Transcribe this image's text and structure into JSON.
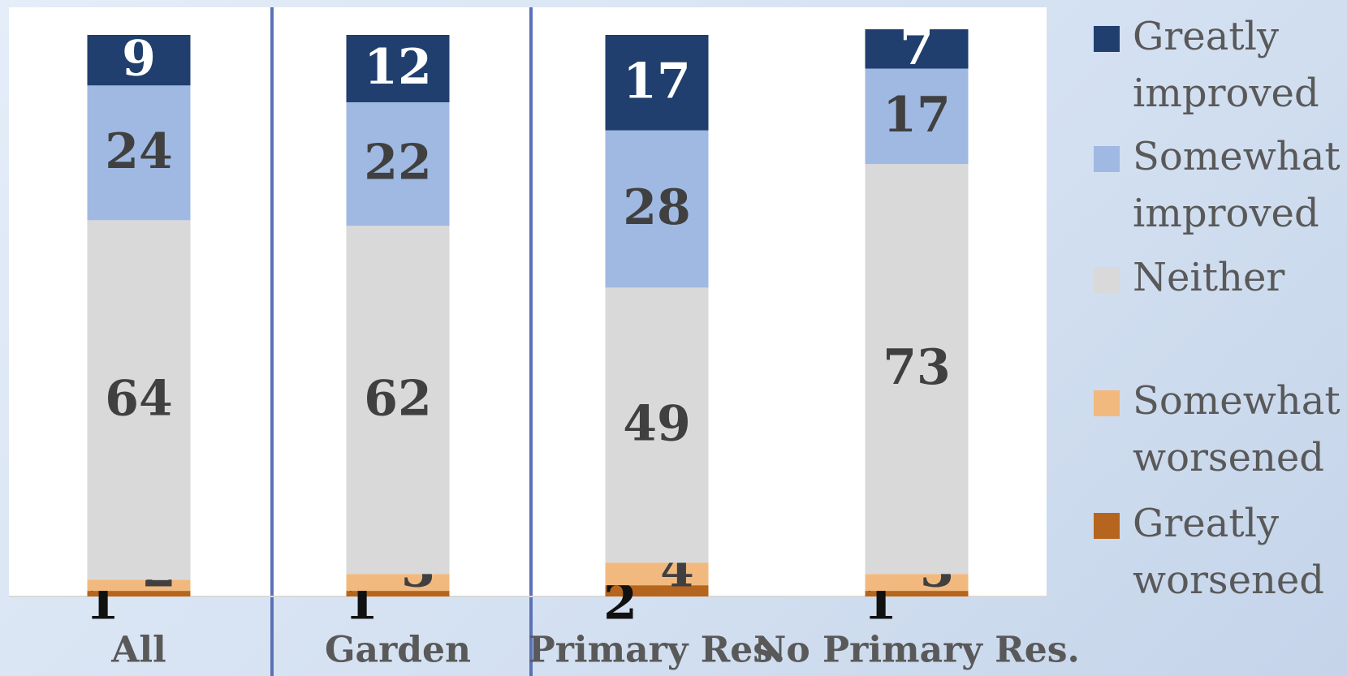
{
  "chart_data": {
    "type": "stacked_bar",
    "categories": [
      "All",
      "Garden",
      "Primary Res.",
      "No Primary Res."
    ],
    "ylim": [
      0,
      100
    ],
    "series": [
      {
        "name": "Greatly worsened",
        "color": "#b5651d",
        "values": [
          1,
          1,
          2,
          1
        ]
      },
      {
        "name": "Somewhat worsened",
        "color": "#f2b97f",
        "values": [
          2,
          3,
          4,
          3
        ]
      },
      {
        "name": "Neither",
        "color": "#d9d9d9",
        "values": [
          64,
          62,
          49,
          73
        ]
      },
      {
        "name": "Somewhat improved",
        "color": "#a0b9e2",
        "values": [
          24,
          22,
          28,
          17
        ]
      },
      {
        "name": "Greatly improved",
        "color": "#203f6e",
        "values": [
          9,
          12,
          17,
          7
        ]
      }
    ]
  }
}
